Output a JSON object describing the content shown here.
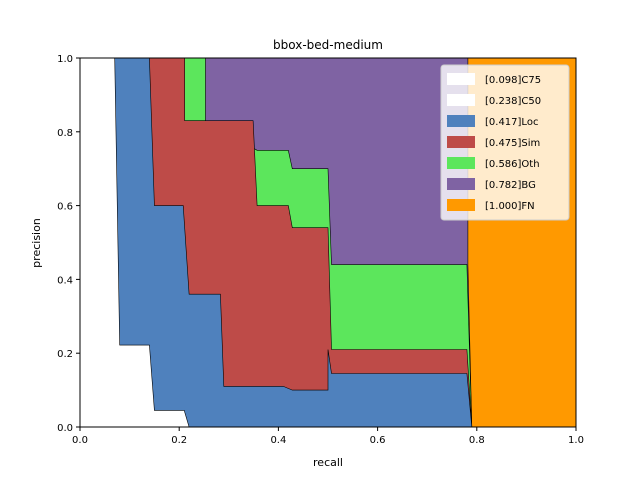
{
  "chart_data": {
    "type": "area",
    "title": "bbox-bed-medium",
    "xlabel": "recall",
    "ylabel": "precision",
    "xlim": [
      0,
      1
    ],
    "ylim": [
      0,
      1
    ],
    "xticks": [
      "0.0",
      "0.2",
      "0.4",
      "0.6",
      "0.8",
      "1.0"
    ],
    "yticks": [
      "0.0",
      "0.2",
      "0.4",
      "0.6",
      "0.8",
      "1.0"
    ],
    "grid": false,
    "legend_position": "top-right",
    "series": [
      {
        "name": "[1.000]FN",
        "color": "#ff9900",
        "points": [
          [
            0,
            1
          ],
          [
            1,
            1
          ],
          [
            1,
            0
          ],
          [
            0,
            0
          ]
        ]
      },
      {
        "name": "[0.782]BG",
        "color": "#7f63a3",
        "points": [
          [
            0,
            1
          ],
          [
            0.782,
            1
          ],
          [
            0.782,
            0.44
          ],
          [
            0.79,
            0
          ],
          [
            0,
            0
          ]
        ]
      },
      {
        "name": "[0.586]Oth",
        "color": "#5ce65c",
        "points": [
          [
            0.021,
            1
          ],
          [
            0.211,
            1
          ],
          [
            0.253,
            1
          ],
          [
            0.253,
            0.83
          ],
          [
            0.357,
            0.75
          ],
          [
            0.42,
            0.75
          ],
          [
            0.428,
            0.7
          ],
          [
            0.5,
            0.7
          ],
          [
            0.507,
            0.44
          ],
          [
            0.78,
            0.44
          ],
          [
            0.79,
            0
          ],
          [
            0,
            0
          ]
        ]
      },
      {
        "name": "[0.475]Sim",
        "color": "#be4b48",
        "points": [
          [
            0.021,
            1
          ],
          [
            0.211,
            1
          ],
          [
            0.211,
            0.83
          ],
          [
            0.349,
            0.83
          ],
          [
            0.357,
            0.6
          ],
          [
            0.42,
            0.6
          ],
          [
            0.428,
            0.54
          ],
          [
            0.5,
            0.54
          ],
          [
            0.507,
            0.21
          ],
          [
            0.78,
            0.21
          ],
          [
            0.79,
            0
          ],
          [
            0,
            0
          ]
        ]
      },
      {
        "name": "[0.417]Loc",
        "color": "#4f81bd",
        "points": [
          [
            0.021,
            1
          ],
          [
            0.14,
            1
          ],
          [
            0.15,
            0.6
          ],
          [
            0.208,
            0.6
          ],
          [
            0.22,
            0.36
          ],
          [
            0.283,
            0.36
          ],
          [
            0.29,
            0.11
          ],
          [
            0.41,
            0.11
          ],
          [
            0.428,
            0.1
          ],
          [
            0.5,
            0.1
          ],
          [
            0.5,
            0.21
          ],
          [
            0.507,
            0.145
          ],
          [
            0.78,
            0.145
          ],
          [
            0.79,
            0
          ],
          [
            0,
            0
          ]
        ]
      },
      {
        "name": "[0.238]C50",
        "color": "#ffffff",
        "points": [
          [
            0,
            1
          ],
          [
            0.07,
            1
          ],
          [
            0.08,
            0.222
          ],
          [
            0.14,
            0.222
          ],
          [
            0.15,
            0.045
          ],
          [
            0.21,
            0.045
          ],
          [
            0.22,
            0
          ],
          [
            0,
            0
          ]
        ]
      },
      {
        "name": "[0.098]C75",
        "color": "#ffffff",
        "points": [
          [
            0,
            1
          ],
          [
            0,
            0
          ]
        ]
      }
    ]
  }
}
